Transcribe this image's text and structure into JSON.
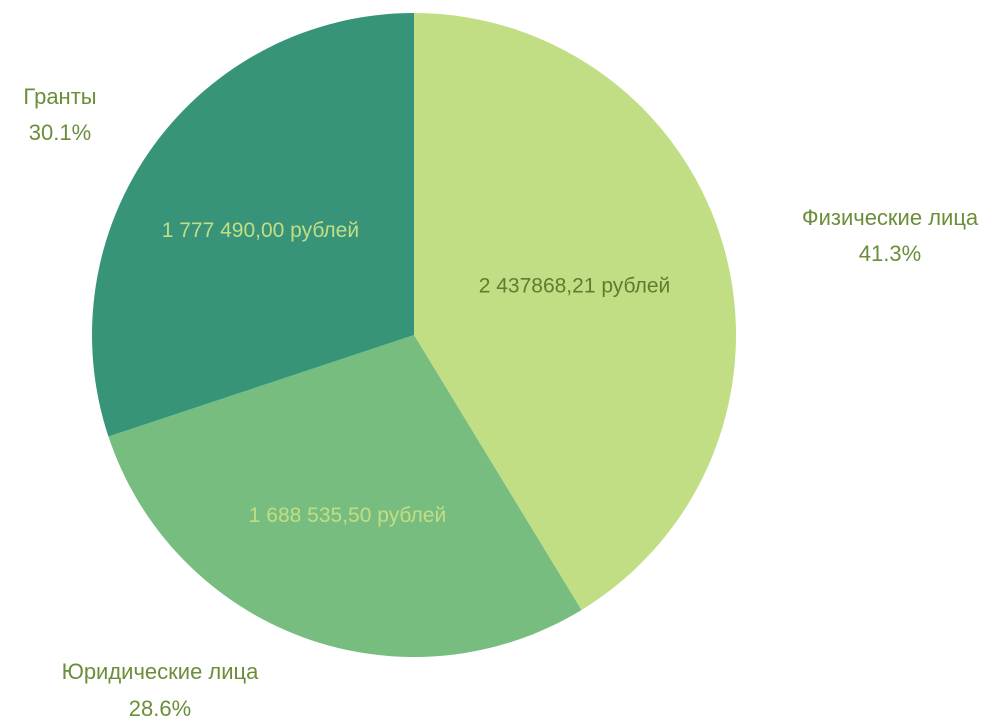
{
  "chart_data": {
    "type": "pie",
    "title": "",
    "slices": [
      {
        "name": "Физические лица",
        "value": 2437868.21,
        "value_label": "2 437868,21 рублей",
        "percent_label": "41.3%",
        "color": "#C2DE84",
        "inner_label_color": "#5E7D2E"
      },
      {
        "name": "Юридические лица",
        "value": 1688535.5,
        "value_label": "1 688 535,50 рублей",
        "percent_label": "28.6%",
        "color": "#77BD80",
        "inner_label_color": "#C2DE84"
      },
      {
        "name": "Гранты",
        "value": 1777490.0,
        "value_label": "1 777 490,00 рублей",
        "percent_label": "30.1%",
        "color": "#389479",
        "inner_label_color": "#C2DE84"
      }
    ],
    "outer_label_color": "#6B8E3A",
    "start_angle": "top, clockwise"
  }
}
